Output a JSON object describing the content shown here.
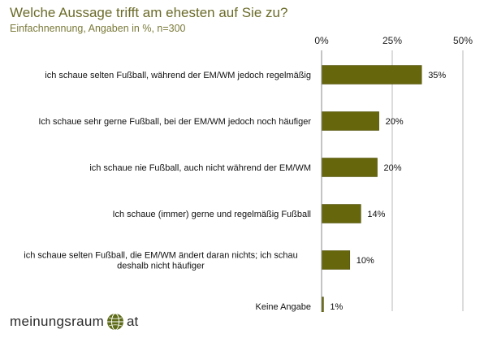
{
  "header": {
    "title": "Welche Aussage trifft am ehesten auf Sie zu?",
    "subtitle": "Einfachnennung, Angaben in %, n=300"
  },
  "chart_data": {
    "type": "bar",
    "orientation": "horizontal",
    "categories": [
      "ich schaue selten Fußball, während der EM/WM jedoch regelmäßig",
      "Ich schaue sehr gerne Fußball, bei der EM/WM jedoch noch häufiger",
      "ich schaue nie Fußball, auch nicht während der EM/WM",
      "Ich schaue (immer) gerne und regelmäßig Fußball",
      "ich schaue selten Fußball, die EM/WM ändert daran nichts; ich schau deshalb nicht häufiger",
      "Keine Angabe"
    ],
    "values": [
      35.4,
      20.3,
      19.7,
      13.9,
      10.0,
      0.7
    ],
    "value_labels": [
      "35%",
      "20%",
      "20%",
      "14%",
      "10%",
      "1%"
    ],
    "x_ticks": [
      "0%",
      "25%",
      "50%"
    ],
    "x_tick_values": [
      0,
      25,
      50
    ],
    "xlim": [
      0,
      50
    ],
    "grid": true,
    "bar_color": "#66660d",
    "grid_color": "#b8b8b8"
  },
  "logo": {
    "brand": "meinungsraum",
    "suffix": "at",
    "icon": "globe-icon",
    "color": "#66660d"
  }
}
